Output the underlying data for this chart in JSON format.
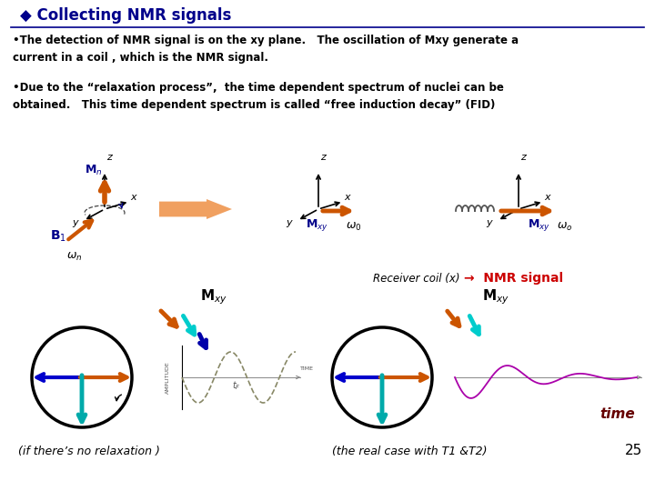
{
  "title": "◆ Collecting NMR signals",
  "title_color": "#00008B",
  "bg_color": "#FFFFFF",
  "text1": "•The detection of NMR signal is on the xy plane.   The oscillation of Mxy generate a\ncurrent in a coil , which is the NMR signal.",
  "text2": "•Due to the “relaxation process”,  the time dependent spectrum of nuclei can be\nobtained.   This time dependent spectrum is called “free induction decay” (FID)",
  "text_color": "#000000",
  "footer1": "(if there’s no relaxation )",
  "footer2": "(the real case with T1 &T2)",
  "page_num": "25",
  "nmr_signal_text": "→  NMR signal",
  "receiver_text": "Receiver coil (x)",
  "time_label": "time"
}
